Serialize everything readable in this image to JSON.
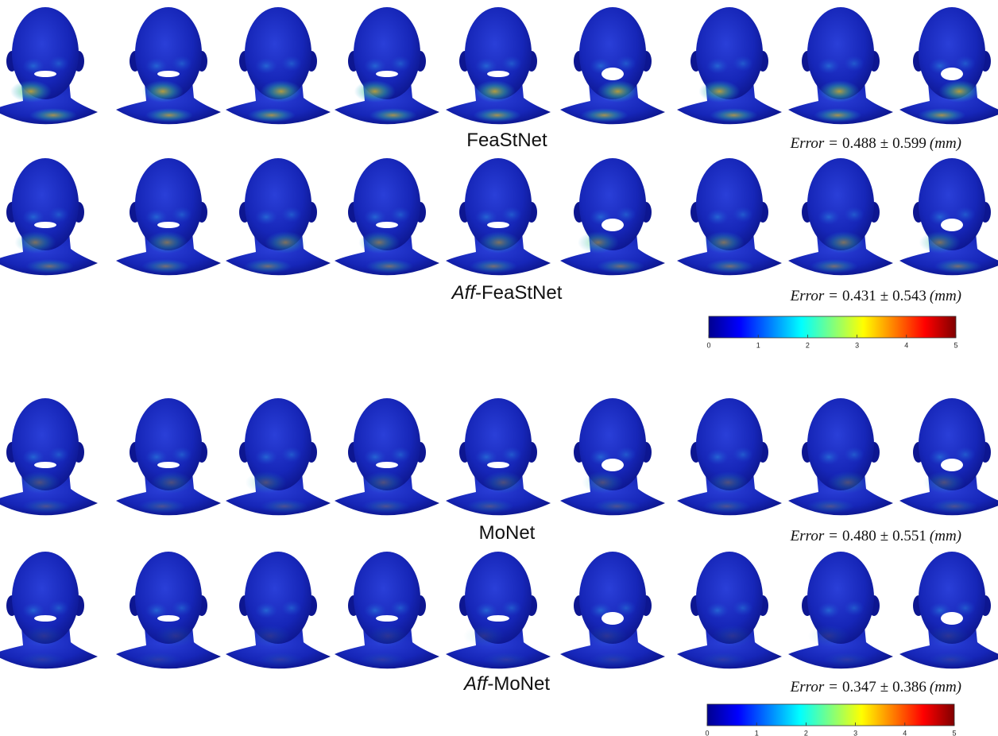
{
  "rows": [
    {
      "name": "FeaStNet",
      "error": {
        "label": "Error",
        "relation": "=",
        "mean": 0.488,
        "pm": "±",
        "std": 0.599,
        "unit": "(mm)"
      }
    },
    {
      "prefix": "Aff",
      "name": "-FeaStNet",
      "error": {
        "label": "Error",
        "relation": "=",
        "mean": 0.431,
        "pm": "±",
        "std": 0.543,
        "unit": "(mm)"
      }
    },
    {
      "name": "MoNet",
      "error": {
        "label": "Error",
        "relation": "=",
        "mean": 0.48,
        "pm": "±",
        "std": 0.551,
        "unit": "(mm)"
      }
    },
    {
      "prefix": "Aff",
      "name": "-MoNet",
      "error": {
        "label": "Error",
        "relation": "=",
        "mean": 0.347,
        "pm": "±",
        "std": 0.386,
        "unit": "(mm)"
      }
    }
  ],
  "colorbars": [
    {
      "lim": [
        0,
        5
      ],
      "ticks": [
        0,
        1,
        2,
        3,
        4,
        5
      ]
    },
    {
      "lim": [
        0,
        5
      ],
      "ticks": [
        0,
        1,
        2,
        3,
        4,
        5
      ]
    }
  ]
}
